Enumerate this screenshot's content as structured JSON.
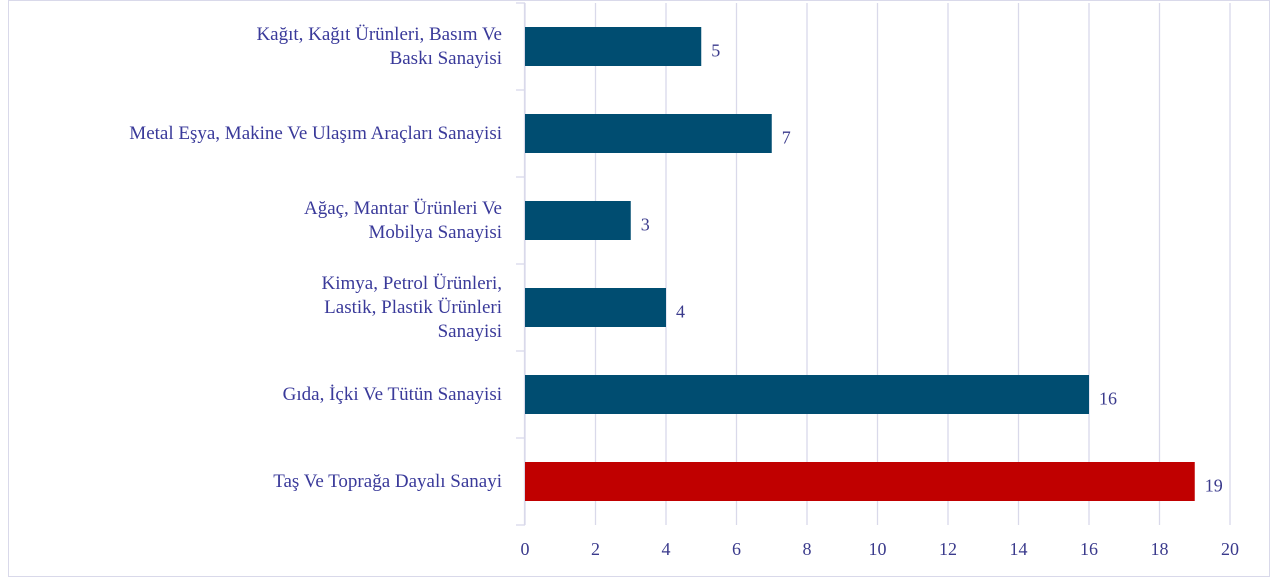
{
  "chart_data": {
    "type": "bar",
    "orientation": "horizontal",
    "categories": [
      "Kağıt, Kağıt Ürünleri, Basım Ve Baskı Sanayisi",
      "Metal Eşya, Makine Ve Ulaşım Araçları Sanayisi",
      "Ağaç, Mantar Ürünleri Ve Mobilya Sanayisi",
      "Kimya, Petrol Ürünleri, Lastik, Plastik Ürünleri Sanayisi",
      "Gıda, İçki Ve Tütün Sanayisi",
      "Taş Ve Toprağa Dayalı Sanayi"
    ],
    "values": [
      5,
      7,
      3,
      4,
      16,
      19
    ],
    "colors": [
      "#004d71",
      "#004d71",
      "#004d71",
      "#004d71",
      "#004d71",
      "#c00000"
    ],
    "xlim": [
      0,
      20
    ],
    "xticks": [
      0,
      2,
      4,
      6,
      8,
      10,
      12,
      14,
      16,
      18,
      20
    ],
    "grid": true
  }
}
